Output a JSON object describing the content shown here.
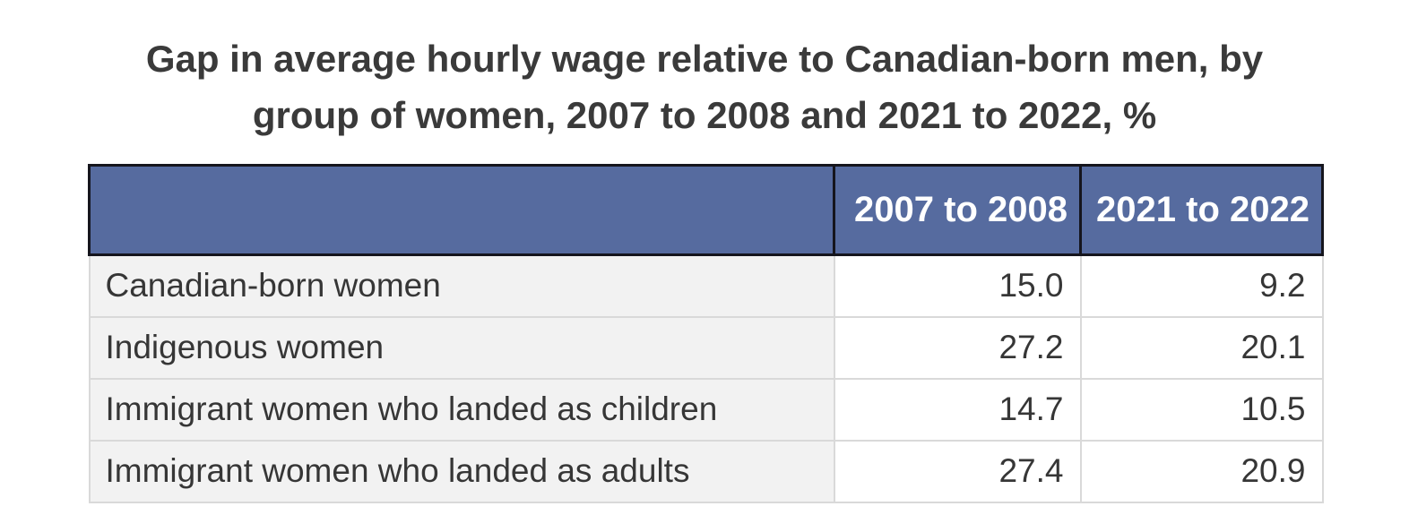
{
  "title": {
    "line1": "Gap in average hourly wage relative to Canadian-born men, by",
    "line2": "group of women, 2007 to 2008 and 2021 to 2022, %"
  },
  "table": {
    "columns": [
      "2007 to 2008",
      "2021 to 2022"
    ],
    "rows": [
      {
        "label": "Canadian-born women",
        "values": [
          "15.0",
          "9.2"
        ]
      },
      {
        "label": "Indigenous women",
        "values": [
          "27.2",
          "20.1"
        ]
      },
      {
        "label": "Immigrant women who landed as children",
        "values": [
          "14.7",
          "10.5"
        ]
      },
      {
        "label": "Immigrant women who landed as adults",
        "values": [
          "27.4",
          "20.9"
        ]
      }
    ]
  },
  "colors": {
    "header_bg": "#566b9f",
    "header_text": "#ffffff",
    "header_border": "#15151d",
    "row_label_bg": "#f2f2f2",
    "body_border": "#d9d9d9",
    "body_text": "#363636",
    "title_text": "#3a3a3a"
  },
  "chart_data": {
    "type": "table",
    "title": "Gap in average hourly wage relative to Canadian-born men, by group of women, 2007 to 2008 and 2021 to 2022, %",
    "categories": [
      "Canadian-born women",
      "Indigenous women",
      "Immigrant women who landed as children",
      "Immigrant women who landed as adults"
    ],
    "series": [
      {
        "name": "2007 to 2008",
        "values": [
          15.0,
          27.2,
          14.7,
          27.4
        ]
      },
      {
        "name": "2021 to 2022",
        "values": [
          9.2,
          20.1,
          10.5,
          20.9
        ]
      }
    ],
    "unit": "%",
    "legend_position": "column-headers",
    "grid": false
  }
}
